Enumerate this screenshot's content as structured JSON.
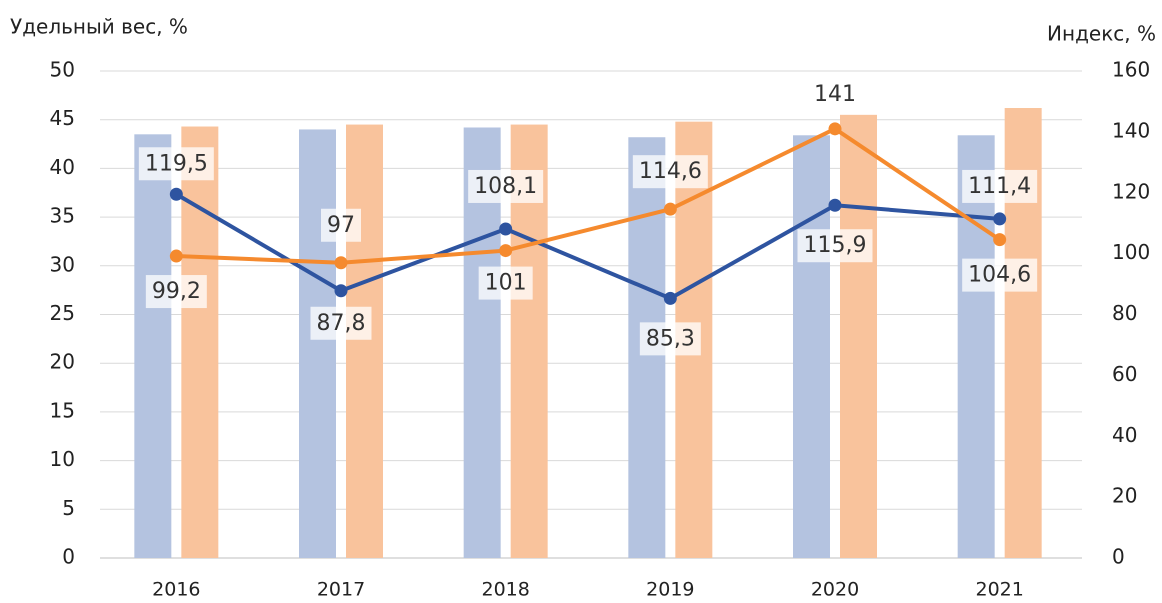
{
  "chart_data": {
    "type": "bar-line",
    "y_label": "Удельный вес, %",
    "y2_label": "Индекс, %",
    "categories": [
      "2016",
      "2017",
      "2018",
      "2019",
      "2020",
      "2021"
    ],
    "ylim": [
      0,
      50
    ],
    "yticks": [
      0,
      5,
      10,
      15,
      20,
      25,
      30,
      35,
      40,
      45,
      50
    ],
    "y2lim": [
      0,
      160
    ],
    "y2ticks": [
      0,
      20,
      40,
      60,
      80,
      100,
      120,
      140,
      160
    ],
    "grid": true,
    "series": [
      {
        "type": "bar",
        "color": "#b4c3e0",
        "values": [
          43.5,
          44,
          44.2,
          43.2,
          43.4,
          43.4
        ]
      },
      {
        "type": "bar",
        "color": "#f9c39c",
        "values": [
          44.3,
          44.5,
          44.5,
          44.8,
          45.5,
          46.2
        ]
      },
      {
        "type": "line",
        "axis": "y2",
        "color": "#2e54a0",
        "values": [
          119.5,
          87.8,
          108.1,
          85.3,
          115.9,
          111.4
        ],
        "value_labels": [
          "119,5",
          "87,8",
          "108,1",
          "85,3",
          "115,9",
          "111,4"
        ]
      },
      {
        "type": "line",
        "axis": "y2",
        "color": "#f58a2e",
        "values": [
          99.2,
          97,
          101,
          114.6,
          141,
          104.6
        ],
        "value_labels": [
          "99,2",
          "97",
          "101",
          "114,6",
          "141",
          "104,6"
        ]
      }
    ]
  }
}
